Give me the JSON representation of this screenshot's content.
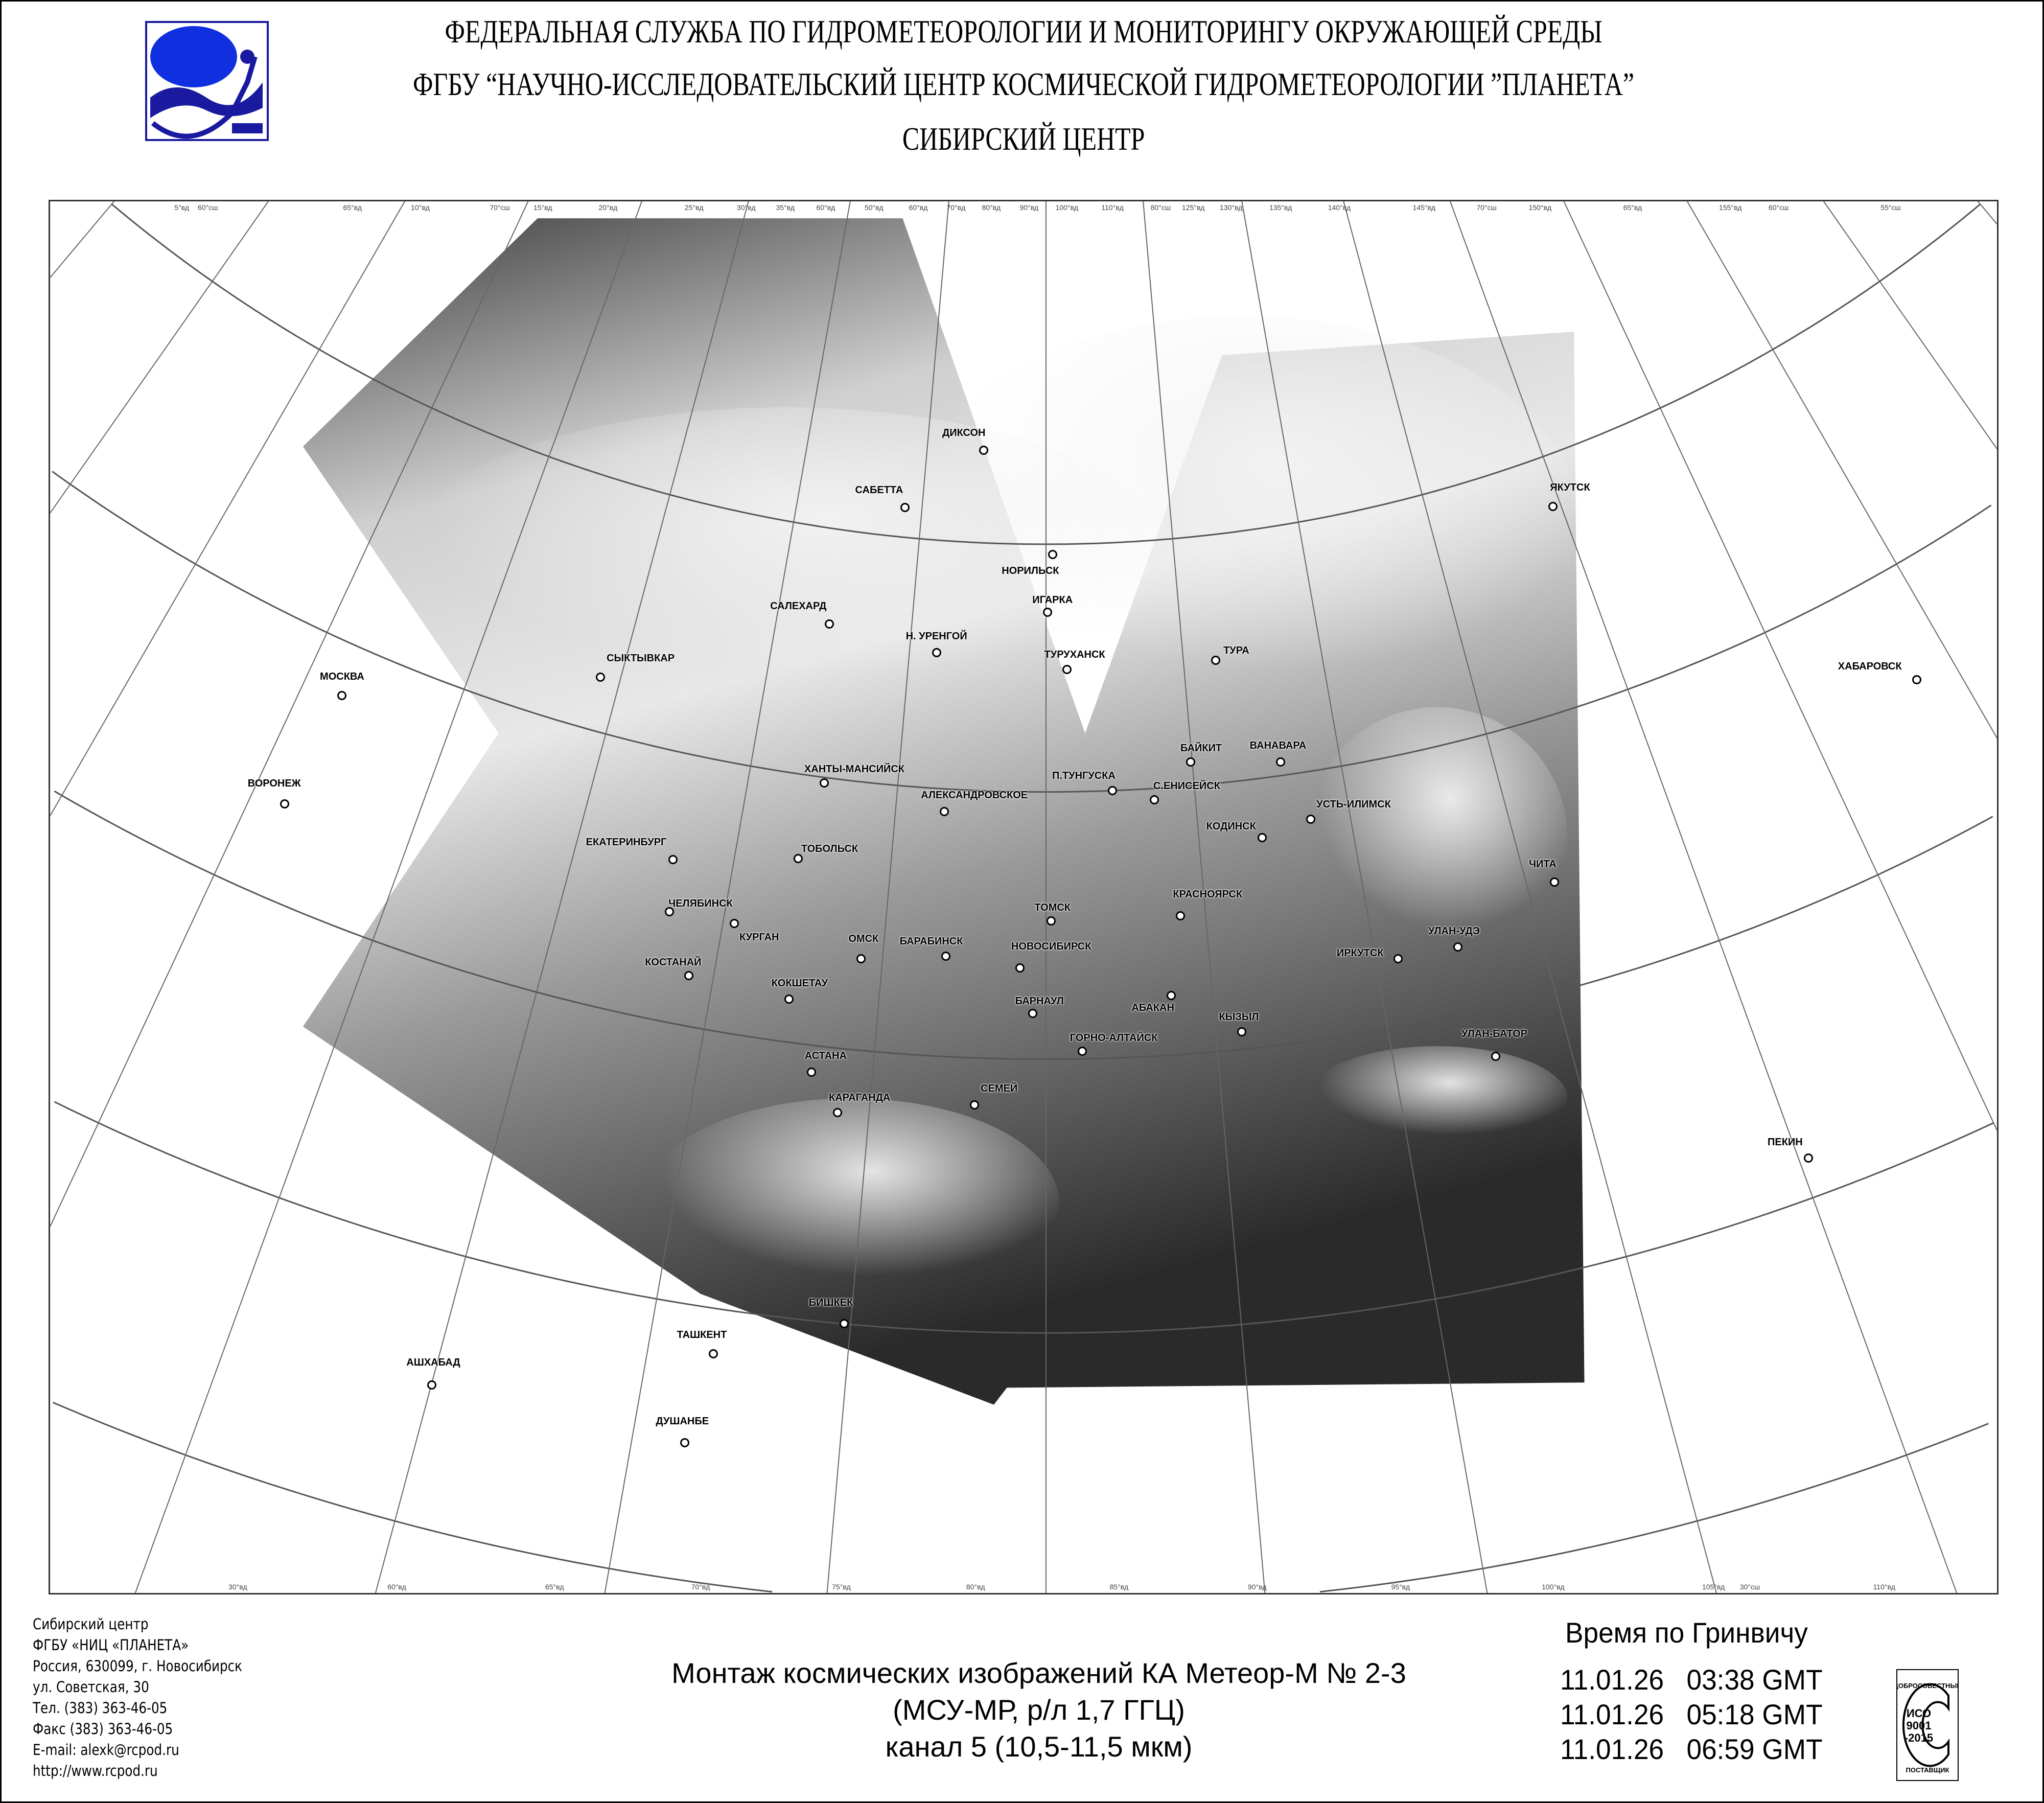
{
  "header": {
    "line1": "ФЕДЕРАЛЬНАЯ СЛУЖБА ПО ГИДРОМЕТЕОРОЛОГИИ И МОНИТОРИНГУ ОКРУЖАЮЩЕЙ СРЕДЫ",
    "line2": "ФГБУ “НАУЧНО-ИССЛЕДОВАТЕЛЬСКИЙ ЦЕНТР КОСМИЧЕСКОЙ ГИДРОМЕТЕОРОЛОГИИ ”ПЛАНЕТА”",
    "line3": "СИБИРСКИЙ  ЦЕНТР"
  },
  "colors": {
    "logo_blue": "#1a1aa0",
    "logo_bright_blue": "#1030e0",
    "frame": "#333333"
  },
  "map": {
    "cities": [
      "ДИКСОН",
      "САБЕТТА",
      "НОРИЛЬСК",
      "ИГАРКА",
      "САЛЕХАРД",
      "Н. УРЕНГОЙ",
      "ТУРУХАНСК",
      "ТУРА",
      "СЫКТЫВКАР",
      "МОСКВА",
      "ЯКУТСК",
      "ХАБАРОВСК",
      "БАЙКИТ",
      "ВАНАВАРА",
      "П.ТУНГУСКА",
      "С.ЕНИСЕЙСК",
      "ХАНТЫ-МАНСИЙСК",
      "ВОРОНЕЖ",
      "АЛЕКСАНДРОВСКОЕ",
      "УСТЬ-ИЛИМСК",
      "КОДИНСК",
      "ЕКАТЕРИНБУРГ",
      "ТОБОЛЬСК",
      "ЧИТА",
      "КРАСНОЯРСК",
      "ТОМСК",
      "ЧЕЛЯБИНСК",
      "КУРГАН",
      "ОМСК",
      "БАРАБИНСК",
      "НОВОСИБИРСК",
      "УЛАН-УДЭ",
      "ИРКУТСК",
      "КОСТАНАЙ",
      "КОКШЕТАУ",
      "БАРНАУЛ",
      "АБАКАН",
      "КЫЗЫЛ",
      "ГОРНО-АЛТАЙСК",
      "УЛАН-БАТОР",
      "АСТАНА",
      "СЕМЕЙ",
      "КАРАГАНДА",
      "ПЕКИН",
      "БИШКЕК",
      "ТАШКЕНТ",
      "АШХАБАД",
      "ДУШАНБЕ"
    ],
    "top_ticks": [
      "5°вд",
      "60°сш",
      "65°вд",
      "10°вд",
      "70°сш",
      "15°вд",
      "20°вд",
      "25°вд",
      "30°вд",
      "35°вд",
      "60°вд",
      "50°вд",
      "60°вд",
      "70°вд",
      "80°вд",
      "90°вд",
      "100°вд",
      "110°вд",
      "80°сш",
      "125°вд",
      "130°вд",
      "135°вд",
      "140°вд",
      "145°вд",
      "70°сш",
      "150°вд",
      "65°вд",
      "155°вд",
      "60°сш",
      "55°сш"
    ],
    "bottom_ticks": [
      "30°вд",
      "60°вд",
      "65°вд",
      "70°вд",
      "75°вд",
      "80°вд",
      "85°вд",
      "90°вд",
      "95°вд",
      "100°вд",
      "105°вд",
      "30°сш",
      "110°вд"
    ]
  },
  "info": {
    "lines": [
      "Сибирский центр",
      "ФГБУ «НИЦ «ПЛАНЕТА»",
      "Россия, 630099, г. Новосибирск",
      "ул. Советская, 30",
      "Тел. (383) 363-46-05",
      "Факс (383) 363-46-05",
      "E-mail: alexk@rcpod.ru",
      "http://www.rcpod.ru"
    ]
  },
  "caption": {
    "line1": "Монтаж космических изображений КА Метеор-М № 2-3",
    "line2": "(МСУ-МР, р/л 1,7 ГГЦ)",
    "line3": "канал 5 (10,5-11,5 мкм)"
  },
  "times": {
    "title": "Время по Гринвичу",
    "entries": [
      "11.01.26   03:38 GMT",
      "11.01.26   05:18 GMT",
      "11.01.26   06:59 GMT"
    ]
  },
  "iso_badge": {
    "top": "ДОБРОСОВЕСТНЫЙ",
    "l1": "ИСО",
    "l2": "9001",
    "l3": "-2015",
    "bottom": "ПОСТАВЩИК"
  }
}
